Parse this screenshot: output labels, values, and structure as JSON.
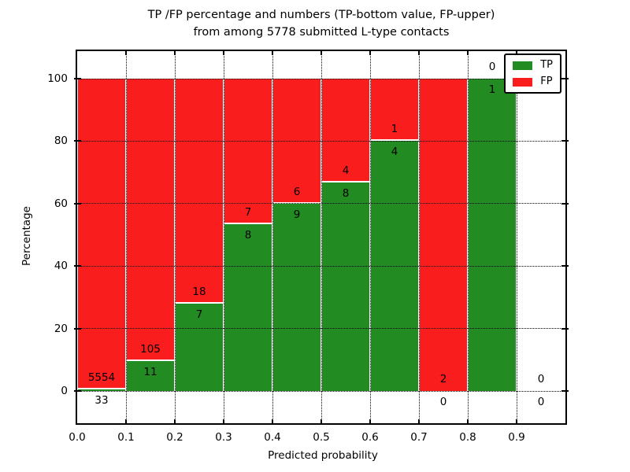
{
  "chart_data": {
    "type": "bar",
    "variant": "stacked-percentage",
    "title_line1": "TP /FP percentage and numbers (TP-bottom value, FP-upper)",
    "title_line2": "from among 5778 submitted L-type contacts",
    "xlabel": "Predicted probability",
    "ylabel": "Percentage",
    "total_submitted": 5778,
    "categories": [
      "0.0-0.1",
      "0.1-0.2",
      "0.2-0.3",
      "0.3-0.4",
      "0.4-0.5",
      "0.5-0.6",
      "0.6-0.7",
      "0.7-0.8",
      "0.8-0.9",
      "0.9-1.0"
    ],
    "series": [
      {
        "name": "TP",
        "position": "bottom",
        "color": "#228b22",
        "counts": [
          33,
          11,
          7,
          8,
          9,
          8,
          4,
          0,
          1,
          0
        ]
      },
      {
        "name": "FP",
        "position": "top",
        "color": "#f91d1d",
        "counts": [
          5554,
          105,
          18,
          7,
          6,
          4,
          1,
          2,
          0,
          0
        ]
      }
    ],
    "tp_percent": [
      0.59,
      9.48,
      28.0,
      53.33,
      60.0,
      66.67,
      80.0,
      0.0,
      100.0,
      0.0
    ],
    "xticks": [
      "0.0",
      "0.1",
      "0.2",
      "0.3",
      "0.4",
      "0.5",
      "0.6",
      "0.7",
      "0.8",
      "0.9"
    ],
    "yticks": [
      "0",
      "20",
      "40",
      "60",
      "80",
      "100"
    ],
    "xlim": [
      0.0,
      1.0
    ],
    "ylim": [
      -11,
      109
    ],
    "grid": "dotted",
    "legend": {
      "position": "upper right",
      "entries": [
        {
          "label": "TP",
          "color": "#228b22"
        },
        {
          "label": "FP",
          "color": "#f91d1d"
        }
      ]
    }
  }
}
